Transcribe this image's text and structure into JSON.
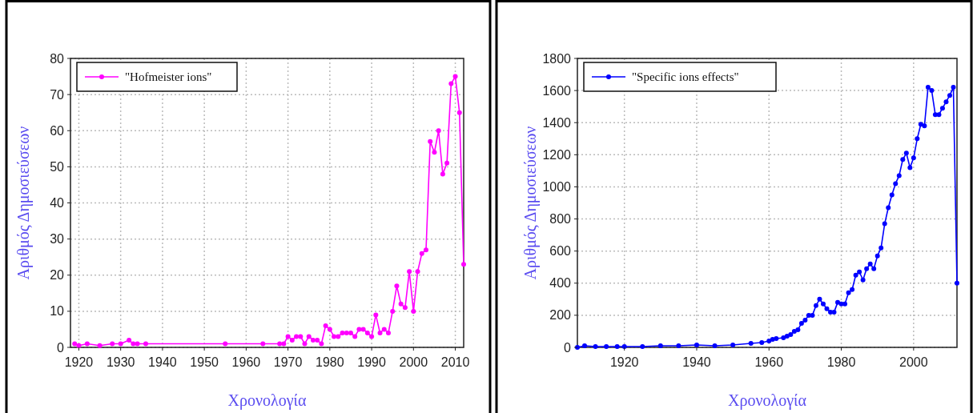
{
  "chart_data": [
    {
      "type": "line",
      "xlabel": "Χρονολογία",
      "ylabel": "Αριθμός Δημοσιεύσεων",
      "xlim": [
        1918,
        2012
      ],
      "ylim": [
        0,
        80
      ],
      "xticks": [
        1920,
        1930,
        1940,
        1950,
        1960,
        1970,
        1980,
        1990,
        2000,
        2010
      ],
      "yticks": [
        0,
        10,
        20,
        30,
        40,
        50,
        60,
        70,
        80
      ],
      "grid": true,
      "legend": "top left",
      "marker": "circle",
      "line_style": "solid",
      "series": [
        {
          "name": "\"Hofmeister ions\"",
          "color": "#ff00ff",
          "x": [
            1919,
            1920,
            1922,
            1925,
            1928,
            1930,
            1932,
            1933,
            1934,
            1936,
            1955,
            1964,
            1968,
            1969,
            1970,
            1971,
            1972,
            1973,
            1974,
            1975,
            1976,
            1977,
            1978,
            1979,
            1980,
            1981,
            1982,
            1983,
            1984,
            1985,
            1986,
            1987,
            1988,
            1989,
            1990,
            1991,
            1992,
            1993,
            1994,
            1995,
            1996,
            1997,
            1998,
            1999,
            2000,
            2001,
            2002,
            2003,
            2004,
            2005,
            2006,
            2007,
            2008,
            2009,
            2010,
            2011,
            2012
          ],
          "values": [
            1,
            0.5,
            1,
            0.5,
            1,
            1,
            2,
            1,
            1,
            1,
            1,
            1,
            1,
            1,
            3,
            2,
            3,
            3,
            1,
            3,
            2,
            2,
            1,
            6,
            5,
            3,
            3,
            4,
            4,
            4,
            3,
            5,
            5,
            4,
            3,
            9,
            4,
            5,
            4,
            10,
            17,
            12,
            11,
            21,
            10,
            21,
            26,
            27,
            57,
            54,
            60,
            48,
            51,
            73,
            75,
            65,
            23
          ]
        }
      ]
    },
    {
      "type": "line",
      "xlabel": "Χρονολογία",
      "ylabel": "Αριθμός Δημοσιεύσεων",
      "xlim": [
        1907,
        2012
      ],
      "ylim": [
        0,
        1800
      ],
      "xticks": [
        1920,
        1940,
        1960,
        1980,
        2000
      ],
      "yticks": [
        0,
        200,
        400,
        600,
        800,
        1000,
        1200,
        1400,
        1600,
        1800
      ],
      "grid": true,
      "legend": "top left",
      "marker": "circle",
      "line_style": "solid",
      "series": [
        {
          "name": "\"Specific ions effects\"",
          "color": "#0000ff",
          "x": [
            1907,
            1909,
            1912,
            1915,
            1918,
            1920,
            1925,
            1930,
            1935,
            1940,
            1945,
            1950,
            1955,
            1958,
            1960,
            1961,
            1962,
            1964,
            1965,
            1966,
            1967,
            1968,
            1969,
            1970,
            1971,
            1972,
            1973,
            1974,
            1975,
            1976,
            1977,
            1978,
            1979,
            1980,
            1981,
            1982,
            1983,
            1984,
            1985,
            1986,
            1987,
            1988,
            1989,
            1990,
            1991,
            1992,
            1993,
            1994,
            1995,
            1996,
            1997,
            1998,
            1999,
            2000,
            2001,
            2002,
            2003,
            2004,
            2005,
            2006,
            2007,
            2008,
            2009,
            2010,
            2011,
            2012
          ],
          "values": [
            0,
            10,
            5,
            5,
            5,
            5,
            5,
            10,
            10,
            15,
            10,
            15,
            25,
            30,
            40,
            50,
            55,
            60,
            70,
            80,
            100,
            110,
            150,
            170,
            200,
            200,
            260,
            300,
            270,
            240,
            220,
            220,
            280,
            270,
            270,
            340,
            360,
            450,
            470,
            420,
            490,
            520,
            490,
            570,
            620,
            770,
            870,
            950,
            1020,
            1070,
            1170,
            1210,
            1120,
            1180,
            1300,
            1390,
            1380,
            1620,
            1600,
            1450,
            1450,
            1490,
            1530,
            1570,
            1620,
            400
          ]
        }
      ]
    }
  ]
}
